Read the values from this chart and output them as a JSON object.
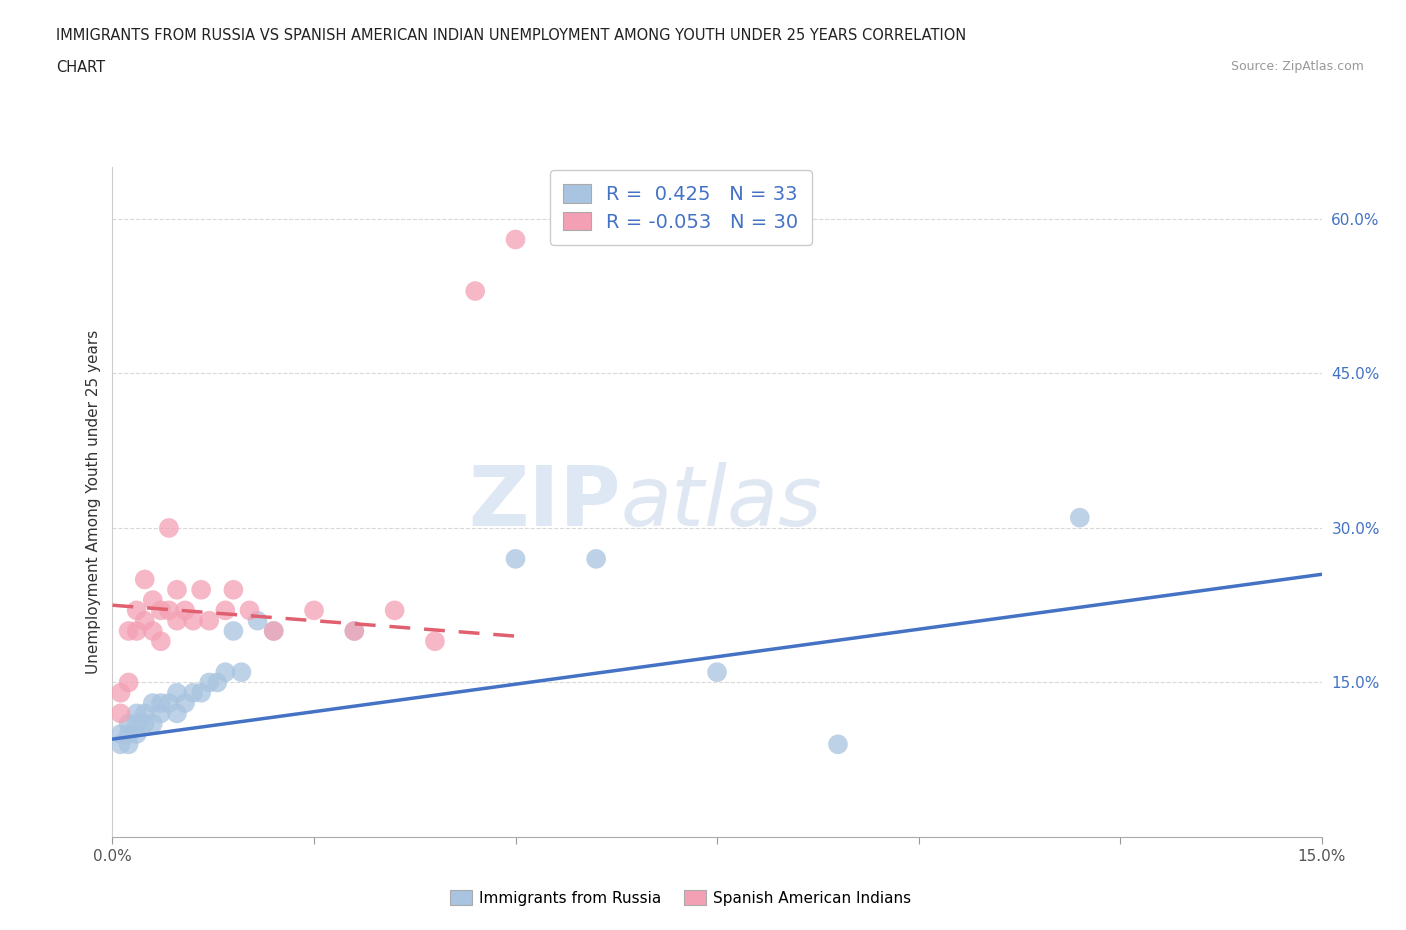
{
  "title_line1": "IMMIGRANTS FROM RUSSIA VS SPANISH AMERICAN INDIAN UNEMPLOYMENT AMONG YOUTH UNDER 25 YEARS CORRELATION",
  "title_line2": "CHART",
  "source": "Source: ZipAtlas.com",
  "ylabel": "Unemployment Among Youth under 25 years",
  "xlim": [
    0.0,
    0.15
  ],
  "ylim": [
    0.0,
    0.65
  ],
  "x_ticks": [
    0.0,
    0.025,
    0.05,
    0.075,
    0.1,
    0.125,
    0.15
  ],
  "x_tick_labels": [
    "0.0%",
    "",
    "",
    "",
    "",
    "",
    "15.0%"
  ],
  "y_tick_labels_right": [
    "15.0%",
    "30.0%",
    "45.0%",
    "60.0%"
  ],
  "y_tick_values_right": [
    0.15,
    0.3,
    0.45,
    0.6
  ],
  "blue_R": "0.425",
  "blue_N": "33",
  "pink_R": "-0.053",
  "pink_N": "30",
  "blue_color": "#a8c4e0",
  "pink_color": "#f4a0b4",
  "blue_line_color": "#4472c4",
  "pink_line_color": "#e06070",
  "watermark_zip": "ZIP",
  "watermark_atlas": "atlas",
  "legend_label_blue": "Immigrants from Russia",
  "legend_label_pink": "Spanish American Indians",
  "blue_scatter_x": [
    0.001,
    0.001,
    0.002,
    0.002,
    0.002,
    0.003,
    0.003,
    0.003,
    0.004,
    0.004,
    0.005,
    0.005,
    0.006,
    0.006,
    0.007,
    0.008,
    0.008,
    0.009,
    0.01,
    0.011,
    0.012,
    0.013,
    0.014,
    0.015,
    0.016,
    0.018,
    0.02,
    0.03,
    0.05,
    0.06,
    0.075,
    0.09,
    0.12
  ],
  "blue_scatter_y": [
    0.09,
    0.1,
    0.09,
    0.1,
    0.11,
    0.1,
    0.11,
    0.12,
    0.11,
    0.12,
    0.11,
    0.13,
    0.12,
    0.13,
    0.13,
    0.12,
    0.14,
    0.13,
    0.14,
    0.14,
    0.15,
    0.15,
    0.16,
    0.2,
    0.16,
    0.21,
    0.2,
    0.2,
    0.27,
    0.27,
    0.16,
    0.09,
    0.31
  ],
  "pink_scatter_x": [
    0.001,
    0.001,
    0.002,
    0.002,
    0.003,
    0.003,
    0.004,
    0.004,
    0.005,
    0.005,
    0.006,
    0.006,
    0.007,
    0.007,
    0.008,
    0.008,
    0.009,
    0.01,
    0.011,
    0.012,
    0.014,
    0.015,
    0.017,
    0.02,
    0.025,
    0.03,
    0.035,
    0.04,
    0.045,
    0.05
  ],
  "pink_scatter_y": [
    0.12,
    0.14,
    0.15,
    0.2,
    0.2,
    0.22,
    0.21,
    0.25,
    0.2,
    0.23,
    0.19,
    0.22,
    0.3,
    0.22,
    0.21,
    0.24,
    0.22,
    0.21,
    0.24,
    0.21,
    0.22,
    0.24,
    0.22,
    0.2,
    0.22,
    0.2,
    0.22,
    0.19,
    0.53,
    0.58
  ],
  "blue_trend_x": [
    0.0,
    0.15
  ],
  "blue_trend_y": [
    0.095,
    0.255
  ],
  "pink_trend_x": [
    0.0,
    0.05
  ],
  "pink_trend_y": [
    0.225,
    0.195
  ],
  "grid_color": "#d8d8d8",
  "background_color": "#ffffff"
}
